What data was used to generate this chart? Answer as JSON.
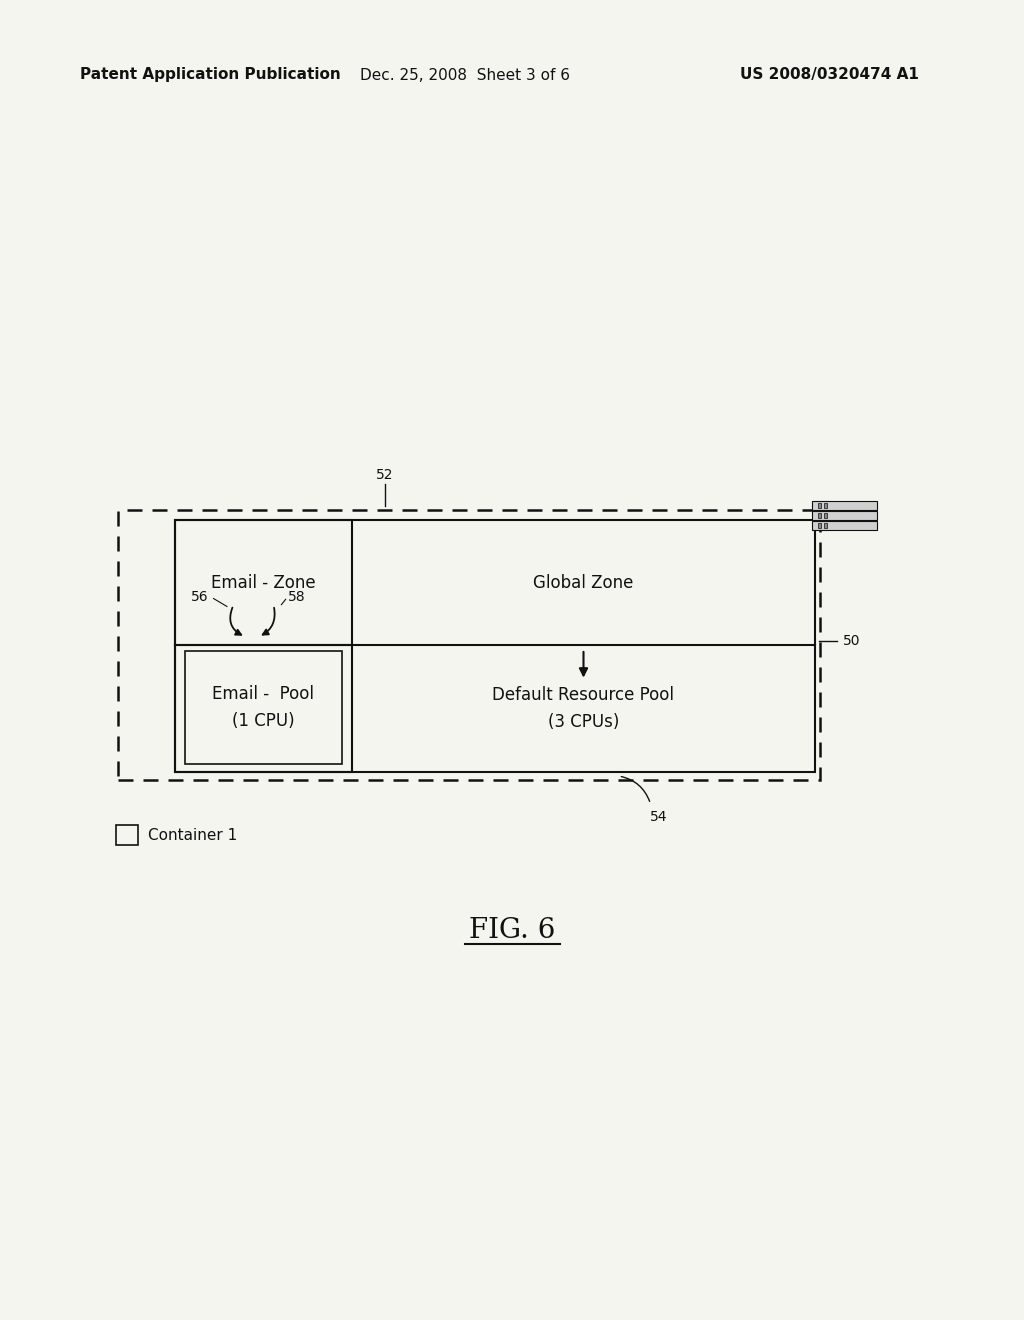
{
  "bg_color": "#f5f5f0",
  "header_left": "Patent Application Publication",
  "header_mid": "Dec. 25, 2008  Sheet 3 of 6",
  "header_right": "US 2008/0320474 A1",
  "header_fontsize": 11,
  "fig_label": "FIG. 6",
  "fig_label_fontsize": 20,
  "label_50": "50",
  "label_52": "52",
  "label_54": "54",
  "label_56": "56",
  "label_58": "58",
  "text_email_zone": "Email - Zone",
  "text_global_zone": "Global Zone",
  "text_email_pool": "Email -  Pool\n(1 CPU)",
  "text_default_pool": "Default Resource Pool\n(3 CPUs)",
  "text_container1": "Container 1",
  "box_color": "#111111",
  "text_color": "#111111"
}
